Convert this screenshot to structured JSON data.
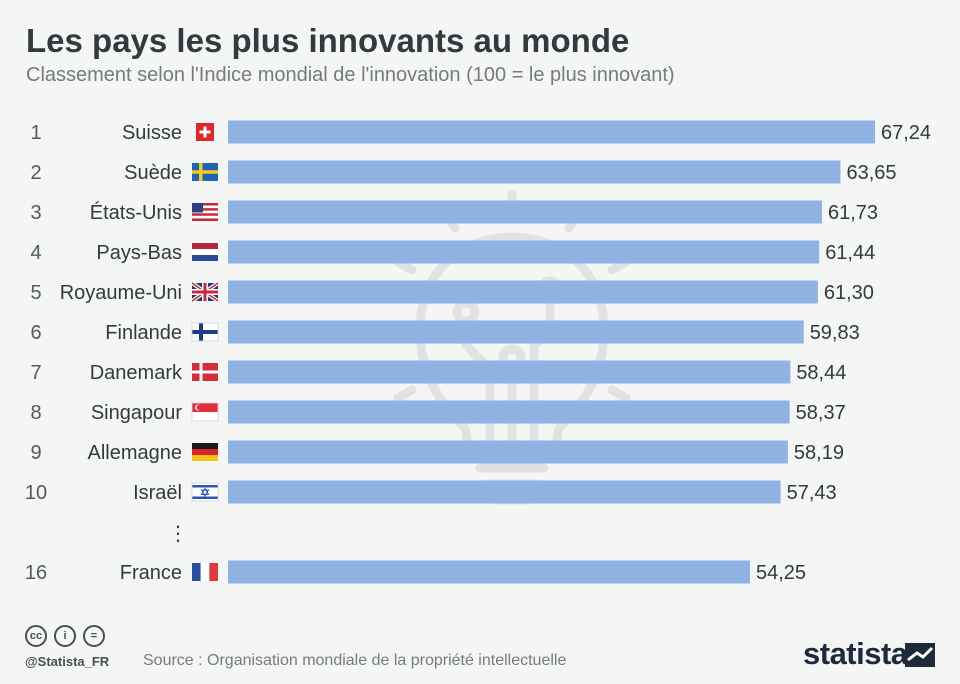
{
  "title": "Les pays les plus innovants au monde",
  "subtitle": "Classement selon l'Indice mondial de l'innovation (100 = le plus innovant)",
  "chart_data": {
    "type": "bar",
    "orientation": "horizontal",
    "title": "Les pays les plus innovants au monde",
    "subtitle": "Classement selon l'Indice mondial de l'innovation (100 = le plus innovant)",
    "ranks": [
      "1",
      "2",
      "3",
      "4",
      "5",
      "6",
      "7",
      "8",
      "9",
      "10",
      "16"
    ],
    "categories": [
      "Suisse",
      "Suède",
      "États-Unis",
      "Pays-Bas",
      "Royaume-Uni",
      "Finlande",
      "Danemark",
      "Singapour",
      "Allemagne",
      "Israël",
      "France"
    ],
    "values": [
      67.24,
      63.65,
      61.73,
      61.44,
      61.3,
      59.83,
      58.44,
      58.37,
      58.19,
      57.43,
      54.25
    ],
    "value_labels": [
      "67,24",
      "63,65",
      "61,73",
      "61,44",
      "61,30",
      "59,83",
      "58,44",
      "58,37",
      "58,19",
      "57,43",
      "54,25"
    ],
    "flags": [
      "switzerland",
      "sweden",
      "united-states",
      "netherlands",
      "united-kingdom",
      "finland",
      "denmark",
      "singapore",
      "germany",
      "israel",
      "france"
    ],
    "gap_marker": "⋮",
    "bar_color": "#8fb4e4",
    "grid": false,
    "legend": "none"
  },
  "footer": {
    "handle": "@Statista_FR",
    "source": "Source : Organisation mondiale de la propriété intellectuelle",
    "brand": "statista",
    "license_icons": [
      "cc-icon",
      "by-icon",
      "nd-icon"
    ],
    "license_glyphs": [
      "cc",
      "i",
      "="
    ]
  },
  "colors": {
    "background": "#f4f5f5",
    "bar": "#8fb4e4",
    "title": "#333a3d",
    "subtitle": "#767b7e",
    "watermark": "#e0e2e4"
  }
}
